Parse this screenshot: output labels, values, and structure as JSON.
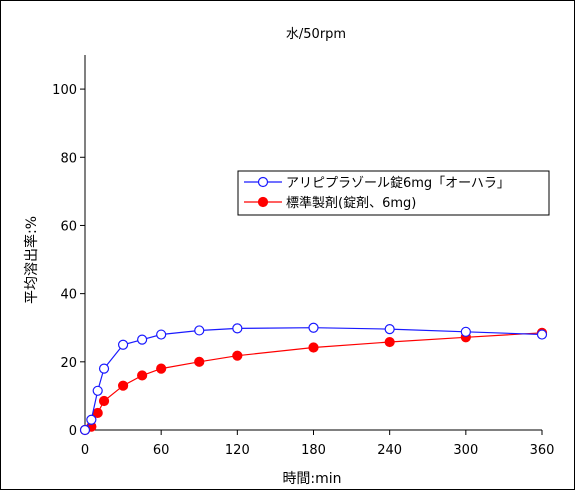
{
  "chart_data": {
    "type": "line",
    "title": "水/50rpm",
    "xlabel": "時間:min",
    "ylabel": "平均溶出率:%",
    "xlim": [
      0,
      360
    ],
    "ylim": [
      0,
      110
    ],
    "xticks": [
      0,
      60,
      120,
      180,
      240,
      300,
      360
    ],
    "yticks": [
      0,
      20,
      40,
      60,
      80,
      100
    ],
    "grid": false,
    "legend_position": "center-right",
    "series": [
      {
        "name": "アリピプラゾール錠6mg「オーハラ」",
        "color": "#1a1aff",
        "marker": "open-circle",
        "x": [
          0,
          5,
          10,
          15,
          30,
          45,
          60,
          90,
          120,
          180,
          240,
          300,
          360
        ],
        "y": [
          0,
          3,
          11.5,
          18,
          25,
          26.5,
          28,
          29.2,
          29.8,
          30,
          29.6,
          28.8,
          28
        ]
      },
      {
        "name": "標準製剤(錠剤、6mg)",
        "color": "#ff0000",
        "marker": "filled-circle",
        "x": [
          0,
          5,
          10,
          15,
          30,
          45,
          60,
          90,
          120,
          180,
          240,
          300,
          360
        ],
        "y": [
          0,
          1,
          5,
          8.5,
          13,
          16,
          18,
          20,
          21.8,
          24.2,
          25.8,
          27.2,
          28.5
        ]
      }
    ]
  }
}
